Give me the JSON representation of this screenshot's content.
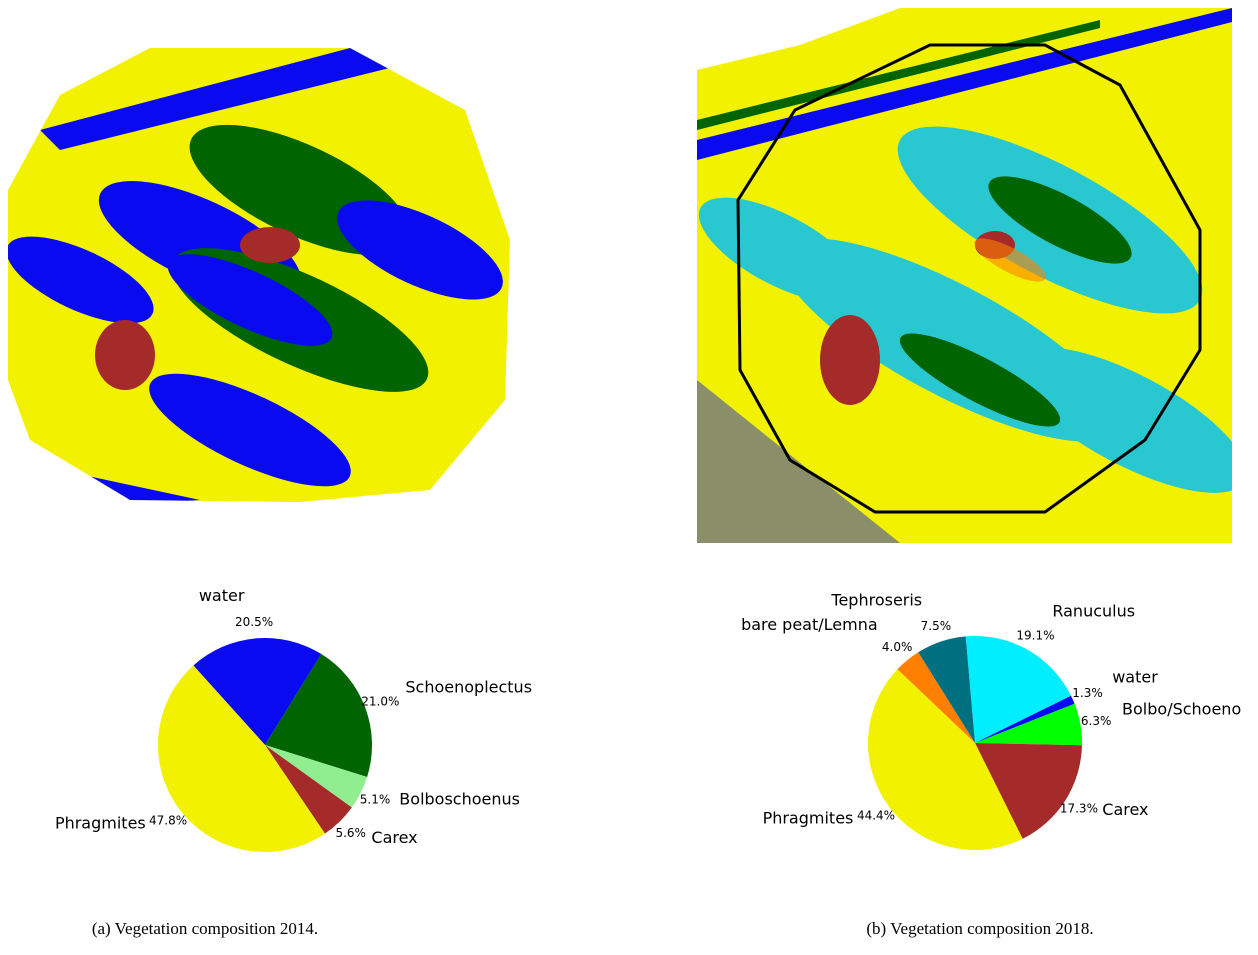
{
  "chart_data": [
    {
      "type": "pie",
      "caption": "(a) Vegetation composition 2014.",
      "categories": [
        "water",
        "Schoenoplectus",
        "Bolboschoenus",
        "Carex",
        "Phragmites"
      ],
      "values": [
        20.5,
        21.0,
        5.1,
        5.6,
        47.8
      ],
      "value_labels": [
        "20.5%",
        "21.0%",
        "5.1%",
        "5.6%",
        "47.8%"
      ],
      "colors": [
        "#0a0af0",
        "#006400",
        "#90ee90",
        "#a52a2a",
        "#f2f200"
      ]
    },
    {
      "type": "pie",
      "caption": "(b) Vegetation composition 2018.",
      "categories": [
        "Ranuculus",
        "water",
        "Bolbo/Schoeno",
        "Carex",
        "Phragmites",
        "bare peat/Lemna",
        "Tephroseris"
      ],
      "values": [
        19.1,
        1.3,
        6.3,
        17.3,
        44.4,
        4.0,
        7.5
      ],
      "value_labels": [
        "19.1%",
        "1.3%",
        "6.3%",
        "17.3%",
        "44.4%",
        "4.0%",
        "7.5%"
      ],
      "colors": [
        "#00eeff",
        "#0a0af0",
        "#00ff00",
        "#a52a2a",
        "#f2f200",
        "#ff8000",
        "#007080"
      ]
    }
  ]
}
